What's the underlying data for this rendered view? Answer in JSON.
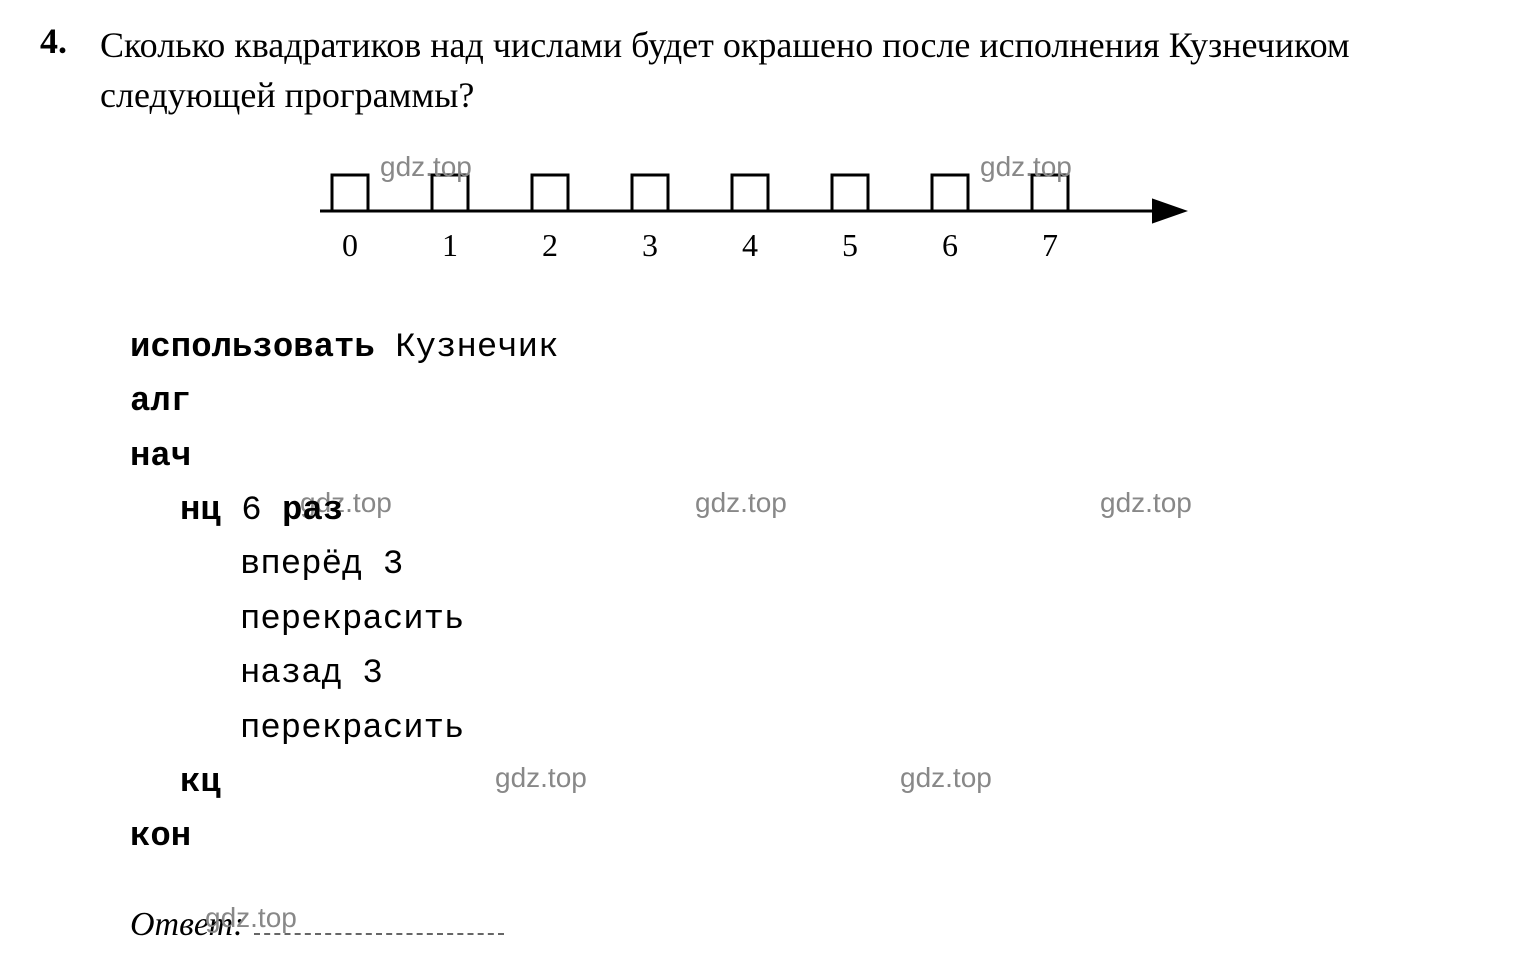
{
  "problem": {
    "number": "4.",
    "text": "Сколько квадратиков над числами будет окрашено после исполнения Кузнечиком следующей программы?"
  },
  "watermarks": {
    "wm1": "gdz.top",
    "wm2": "gdz.top",
    "wm3": "gdz.top",
    "wm4": "gdz.top",
    "wm5": "gdz.top",
    "wm6": "gdz.top",
    "wm7": "gdz.top",
    "wm8": "gdz.top"
  },
  "numberLine": {
    "start": 0,
    "end": 7,
    "labels": [
      "0",
      "1",
      "2",
      "3",
      "4",
      "5",
      "6",
      "7"
    ],
    "squareSize": 36,
    "squareStroke": "#000000",
    "squareFill": "#ffffff",
    "lineStroke": "#000000",
    "lineStrokeWidth": 3,
    "labelFontSize": 32,
    "xStart": 30,
    "xSpacing": 100,
    "yLine": 50,
    "ySquare": 32,
    "yLabel": 95,
    "arrowSize": 18
  },
  "code": {
    "lines": [
      {
        "text_parts": [
          {
            "t": "использовать",
            "bold": true
          },
          {
            "t": " Кузнечик",
            "bold": false
          }
        ],
        "indent": 0
      },
      {
        "text_parts": [
          {
            "t": "алг",
            "bold": true
          }
        ],
        "indent": 0
      },
      {
        "text_parts": [
          {
            "t": "нач",
            "bold": true
          }
        ],
        "indent": 0
      },
      {
        "text_parts": [
          {
            "t": "нц",
            "bold": true
          },
          {
            "t": " 6 ",
            "bold": false
          },
          {
            "t": "раз",
            "bold": true
          }
        ],
        "indent": 1
      },
      {
        "text_parts": [
          {
            "t": "вперёд 3",
            "bold": false
          }
        ],
        "indent": 2
      },
      {
        "text_parts": [
          {
            "t": "перекрасить",
            "bold": false
          }
        ],
        "indent": 2
      },
      {
        "text_parts": [
          {
            "t": "назад 3",
            "bold": false
          }
        ],
        "indent": 2
      },
      {
        "text_parts": [
          {
            "t": "перекрасить",
            "bold": false
          }
        ],
        "indent": 2
      },
      {
        "text_parts": [
          {
            "t": "кц",
            "bold": true
          }
        ],
        "indent": 1
      },
      {
        "text_parts": [
          {
            "t": "кон",
            "bold": true
          }
        ],
        "indent": 0
      }
    ]
  },
  "answer": {
    "label": "Ответ:"
  }
}
